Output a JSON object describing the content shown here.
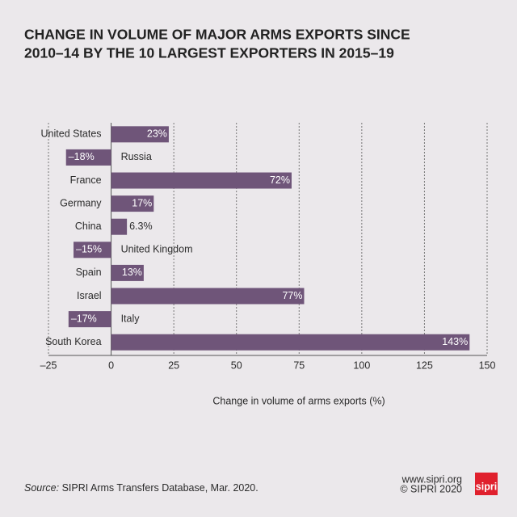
{
  "chart_data": {
    "type": "bar",
    "orientation": "horizontal",
    "title": [
      "CHANGE IN VOLUME OF MAJOR ARMS EXPORTS SINCE",
      "2010–14 BY THE 10 LARGEST EXPORTERS IN 2015–19"
    ],
    "categories": [
      "United States",
      "Russia",
      "France",
      "Germany",
      "China",
      "United Kingdom",
      "Spain",
      "Israel",
      "Italy",
      "South Korea"
    ],
    "values": [
      23,
      -18,
      72,
      17,
      6.3,
      -15,
      13,
      77,
      -17,
      143
    ],
    "value_labels": [
      "23%",
      "–18%",
      "72%",
      "17%",
      "6.3%",
      "–15%",
      "13%",
      "77%",
      "–17%",
      "143%"
    ],
    "color": "#6f5579",
    "xlim": [
      -25,
      150
    ],
    "xticks": [
      {
        "value": -25,
        "label": "–25"
      },
      0,
      25,
      50,
      75,
      100,
      125,
      150
    ],
    "xlabel": "Change in volume of arms exports (%)",
    "grid": true,
    "source_label": "Source:",
    "source": " SIPRI Arms Transfers Database, Mar. 2020.",
    "website": "www.sipri.org",
    "copyright": "© SIPRI 2020",
    "logo": "sipri"
  }
}
